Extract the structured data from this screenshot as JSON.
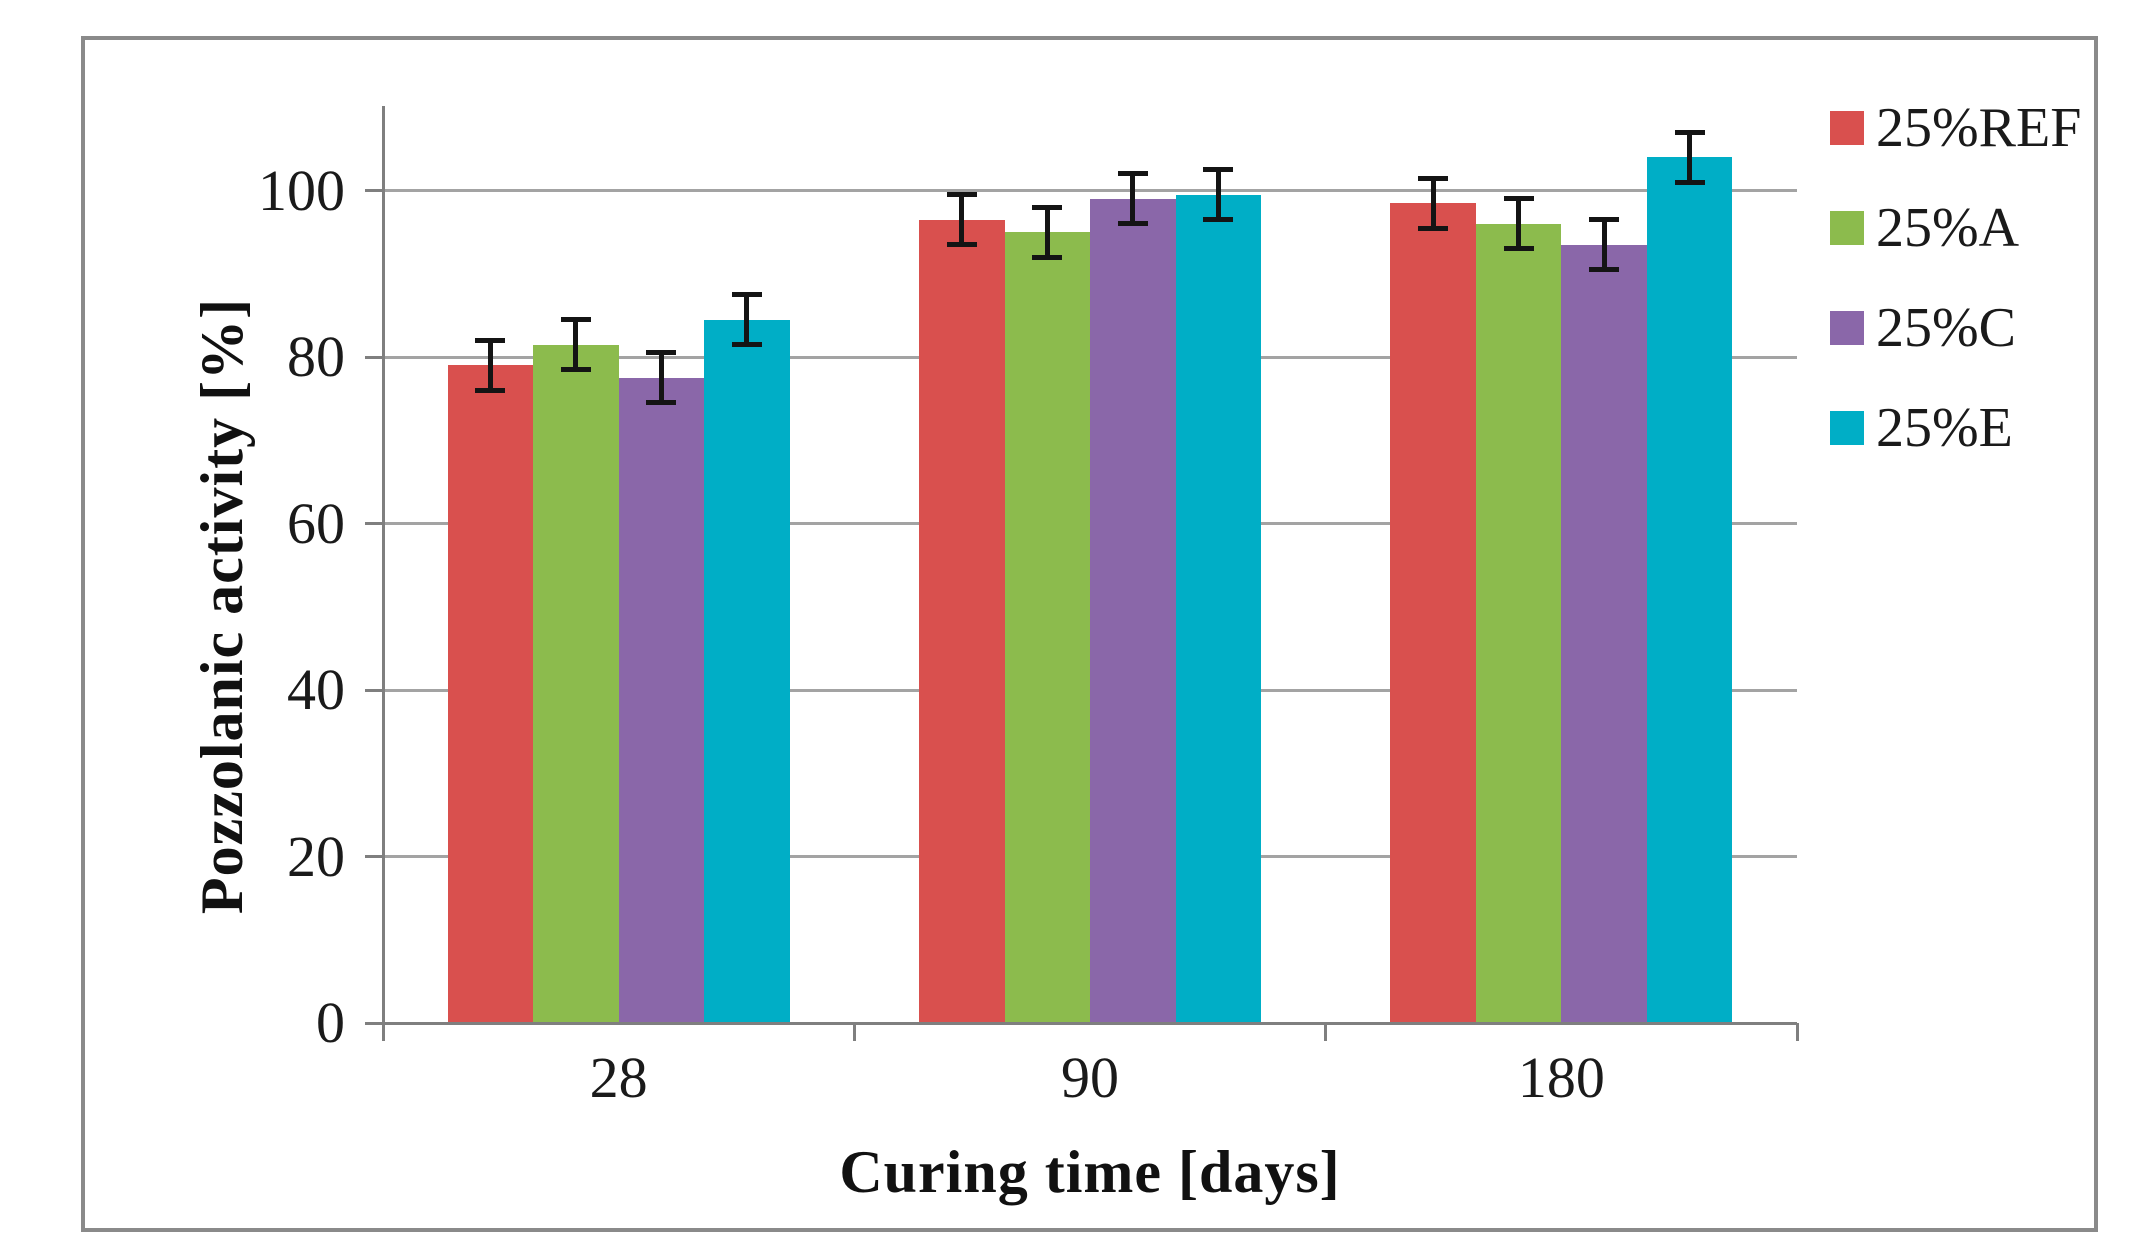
{
  "chart_data": {
    "type": "bar",
    "title": "",
    "xlabel": "Curing time [days]",
    "ylabel": "Pozzolanic activity [%]",
    "categories": [
      "28",
      "90",
      "180"
    ],
    "series": [
      {
        "name": "25%REF",
        "color": "#d9504e",
        "values": [
          79,
          96.5,
          98.5
        ],
        "errors": [
          3,
          3,
          3
        ]
      },
      {
        "name": "25%A",
        "color": "#8cbb4d",
        "values": [
          81.5,
          95,
          96
        ],
        "errors": [
          3,
          3,
          3
        ]
      },
      {
        "name": "25%C",
        "color": "#8a67a9",
        "values": [
          77.5,
          99,
          93.5
        ],
        "errors": [
          3,
          3,
          3
        ]
      },
      {
        "name": "25%E",
        "color": "#00aec6",
        "values": [
          84.5,
          99.5,
          104
        ],
        "errors": [
          3,
          3,
          3
        ]
      }
    ],
    "ylim": [
      0,
      110
    ],
    "yticks": [
      0,
      20,
      40,
      60,
      80,
      100
    ],
    "grid": true,
    "legend_position": "right",
    "error_bar_color": "#141414",
    "grid_color": "#a3a3a3",
    "axis_color": "#7f7f7f",
    "border_color": "#8a8a8a"
  }
}
